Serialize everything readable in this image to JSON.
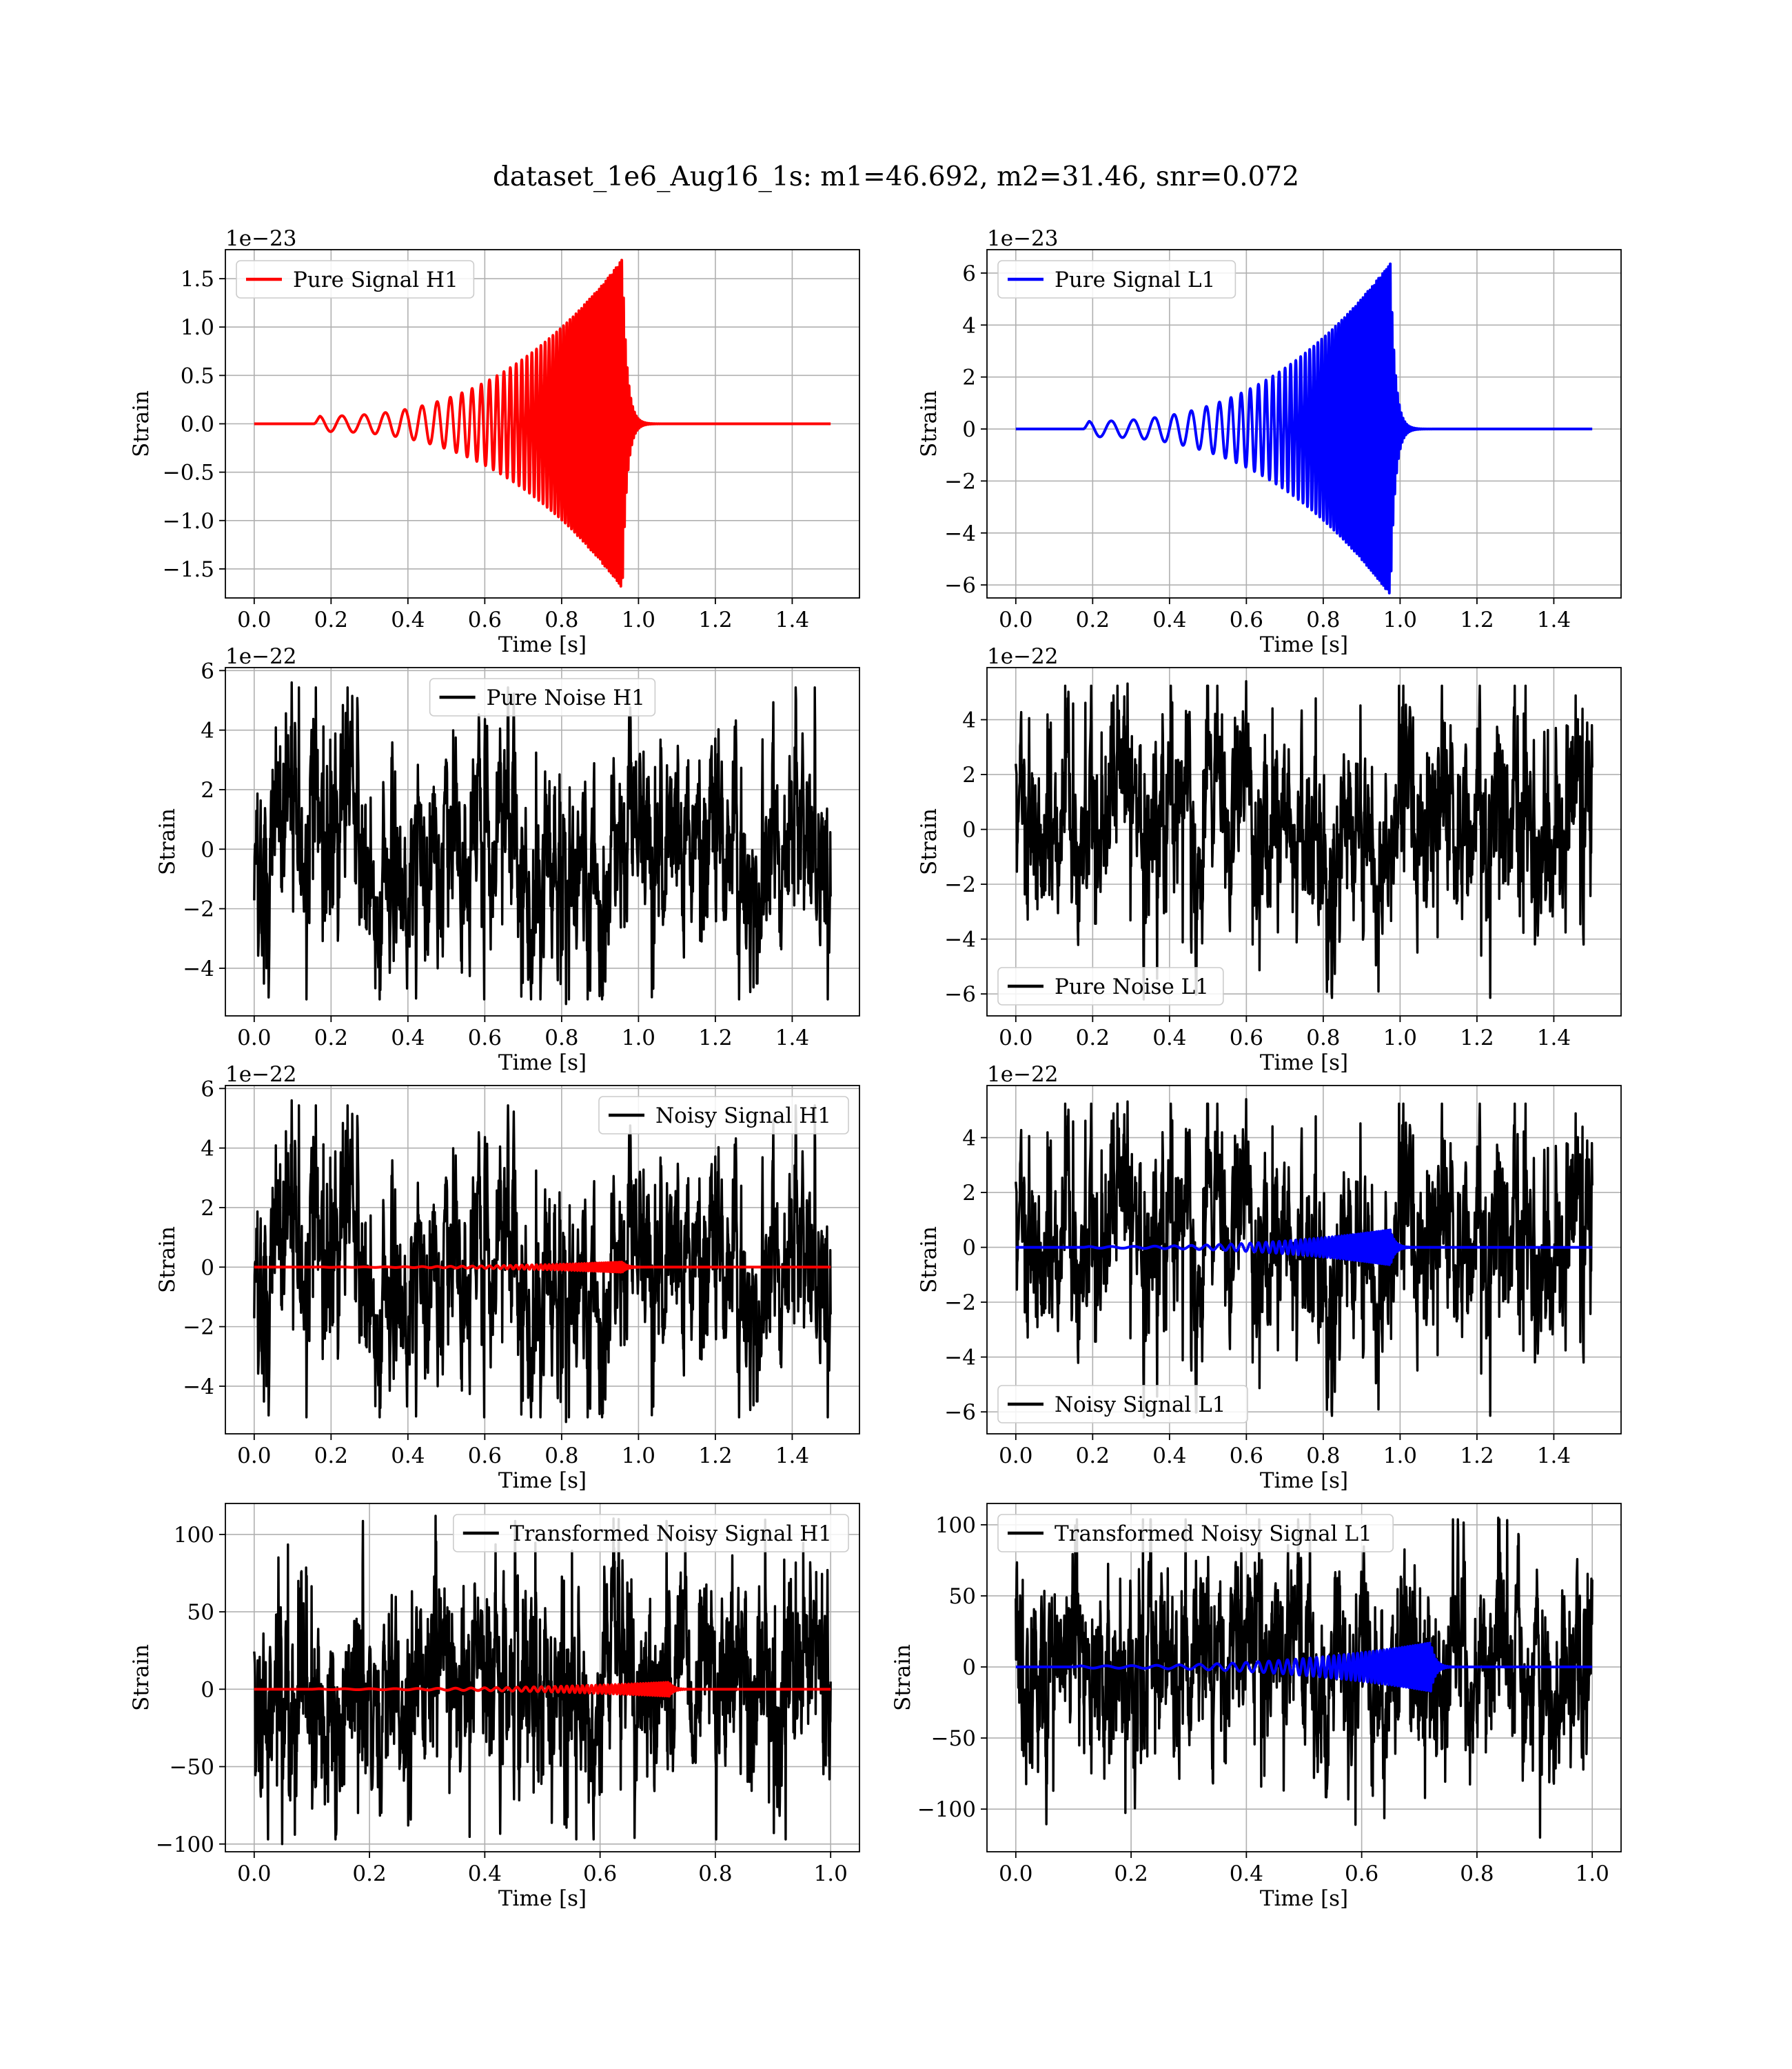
{
  "figure": {
    "suptitle": "dataset_1e6_Aug16_1s: m1=46.692, m2=31.46, snr=0.072"
  },
  "chart_data": [
    {
      "type": "line",
      "panel": "pure-signal-h1",
      "xlabel": "Time [s]",
      "ylabel": "Strain",
      "offset_text": "1e−23",
      "xlim": [
        -0.075,
        1.575
      ],
      "ylim": [
        -1.8,
        1.8
      ],
      "xticks": [
        0.0,
        0.2,
        0.4,
        0.6,
        0.8,
        1.0,
        1.2,
        1.4
      ],
      "xtick_labels": [
        "0.0",
        "0.2",
        "0.4",
        "0.6",
        "0.8",
        "1.0",
        "1.2",
        "1.4"
      ],
      "yticks": [
        -1.5,
        -1.0,
        -0.5,
        0.0,
        0.5,
        1.0,
        1.5
      ],
      "ytick_labels": [
        "−1.5",
        "−1.0",
        "−0.5",
        "0.0",
        "0.5",
        "1.0",
        "1.5"
      ],
      "grid": true,
      "legend": "upper left",
      "series": [
        {
          "name": "Pure Signal H1",
          "color": "#ff0000",
          "kind": "chirp",
          "signal": {
            "t_start": 0.155,
            "t_merge": 0.958,
            "t_end": 1.5,
            "f0": 17,
            "f1": 210,
            "a0": 0.08,
            "a1": 1.7,
            "ringdown": 0.012
          }
        }
      ]
    },
    {
      "type": "line",
      "panel": "pure-signal-l1",
      "xlabel": "Time [s]",
      "ylabel": "Strain",
      "offset_text": "1e−23",
      "xlim": [
        -0.075,
        1.575
      ],
      "ylim": [
        -6.5,
        6.9
      ],
      "xticks": [
        0.0,
        0.2,
        0.4,
        0.6,
        0.8,
        1.0,
        1.2,
        1.4
      ],
      "xtick_labels": [
        "0.0",
        "0.2",
        "0.4",
        "0.6",
        "0.8",
        "1.0",
        "1.2",
        "1.4"
      ],
      "yticks": [
        -6,
        -4,
        -2,
        0,
        2,
        4,
        6
      ],
      "ytick_labels": [
        "−6",
        "−4",
        "−2",
        "0",
        "2",
        "4",
        "6"
      ],
      "grid": true,
      "legend": "upper left",
      "series": [
        {
          "name": "Pure Signal L1",
          "color": "#0000ff",
          "kind": "chirp",
          "signal": {
            "t_start": 0.175,
            "t_merge": 0.975,
            "t_end": 1.5,
            "f0": 17,
            "f1": 210,
            "a0": 0.3,
            "a1": 6.4,
            "ringdown": 0.012
          }
        }
      ]
    },
    {
      "type": "line",
      "panel": "pure-noise-h1",
      "xlabel": "Time [s]",
      "ylabel": "Strain",
      "offset_text": "1e−22",
      "xlim": [
        -0.075,
        1.575
      ],
      "ylim": [
        -5.6,
        6.1
      ],
      "xticks": [
        0.0,
        0.2,
        0.4,
        0.6,
        0.8,
        1.0,
        1.2,
        1.4
      ],
      "xtick_labels": [
        "0.0",
        "0.2",
        "0.4",
        "0.6",
        "0.8",
        "1.0",
        "1.2",
        "1.4"
      ],
      "yticks": [
        -4,
        -2,
        0,
        2,
        4,
        6
      ],
      "ytick_labels": [
        "−4",
        "−2",
        "0",
        "2",
        "4",
        "6"
      ],
      "grid": true,
      "legend": "upper center",
      "series": [
        {
          "name": "Pure Noise H1",
          "color": "#000000",
          "kind": "noise",
          "noise": {
            "t_end": 1.5,
            "sigma": 1.5,
            "max": 5.6,
            "min": -5.2,
            "n": 1600,
            "seed": 11
          }
        }
      ]
    },
    {
      "type": "line",
      "panel": "pure-noise-l1",
      "xlabel": "Time [s]",
      "ylabel": "Strain",
      "offset_text": "1e−22",
      "xlim": [
        -0.075,
        1.575
      ],
      "ylim": [
        -6.8,
        5.9
      ],
      "xticks": [
        0.0,
        0.2,
        0.4,
        0.6,
        0.8,
        1.0,
        1.2,
        1.4
      ],
      "xtick_labels": [
        "0.0",
        "0.2",
        "0.4",
        "0.6",
        "0.8",
        "1.0",
        "1.2",
        "1.4"
      ],
      "yticks": [
        -6,
        -4,
        -2,
        0,
        2,
        4
      ],
      "ytick_labels": [
        "−6",
        "−4",
        "−2",
        "0",
        "2",
        "4"
      ],
      "grid": true,
      "legend": "lower left",
      "series": [
        {
          "name": "Pure Noise L1",
          "color": "#000000",
          "kind": "noise",
          "noise": {
            "t_end": 1.5,
            "sigma": 1.6,
            "max": 5.4,
            "min": -6.2,
            "n": 1600,
            "seed": 23
          }
        }
      ]
    },
    {
      "type": "line",
      "panel": "noisy-signal-h1",
      "xlabel": "Time [s]",
      "ylabel": "Strain",
      "offset_text": "1e−22",
      "xlim": [
        -0.075,
        1.575
      ],
      "ylim": [
        -5.6,
        6.1
      ],
      "xticks": [
        0.0,
        0.2,
        0.4,
        0.6,
        0.8,
        1.0,
        1.2,
        1.4
      ],
      "xtick_labels": [
        "0.0",
        "0.2",
        "0.4",
        "0.6",
        "0.8",
        "1.0",
        "1.2",
        "1.4"
      ],
      "yticks": [
        -4,
        -2,
        0,
        2,
        4,
        6
      ],
      "ytick_labels": [
        "−4",
        "−2",
        "0",
        "2",
        "4",
        "6"
      ],
      "grid": true,
      "legend": "upper right",
      "series": [
        {
          "name": "Noisy Signal H1",
          "color": "#000000",
          "kind": "noise",
          "noise": {
            "t_end": 1.5,
            "sigma": 1.5,
            "max": 5.6,
            "min": -5.2,
            "n": 1600,
            "seed": 11
          }
        },
        {
          "color": "#ff0000",
          "kind": "chirp",
          "signal": {
            "t_start": 0.155,
            "t_merge": 0.958,
            "t_end": 1.5,
            "f0": 17,
            "f1": 210,
            "a0": 0.008,
            "a1": 0.17,
            "ringdown": 0.012
          }
        }
      ]
    },
    {
      "type": "line",
      "panel": "noisy-signal-l1",
      "xlabel": "Time [s]",
      "ylabel": "Strain",
      "offset_text": "1e−22",
      "xlim": [
        -0.075,
        1.575
      ],
      "ylim": [
        -6.8,
        5.9
      ],
      "xticks": [
        0.0,
        0.2,
        0.4,
        0.6,
        0.8,
        1.0,
        1.2,
        1.4
      ],
      "xtick_labels": [
        "0.0",
        "0.2",
        "0.4",
        "0.6",
        "0.8",
        "1.0",
        "1.2",
        "1.4"
      ],
      "yticks": [
        -6,
        -4,
        -2,
        0,
        2,
        4
      ],
      "ytick_labels": [
        "−6",
        "−4",
        "−2",
        "0",
        "2",
        "4"
      ],
      "grid": true,
      "legend": "lower left",
      "series": [
        {
          "name": "Noisy Signal L1",
          "color": "#000000",
          "kind": "noise",
          "noise": {
            "t_end": 1.5,
            "sigma": 1.6,
            "max": 5.4,
            "min": -6.2,
            "n": 1600,
            "seed": 23
          }
        },
        {
          "color": "#0000ff",
          "kind": "chirp",
          "signal": {
            "t_start": 0.175,
            "t_merge": 0.975,
            "t_end": 1.5,
            "f0": 17,
            "f1": 210,
            "a0": 0.03,
            "a1": 0.64,
            "ringdown": 0.012
          }
        }
      ]
    },
    {
      "type": "line",
      "panel": "transformed-noisy-signal-h1",
      "xlabel": "Time [s]",
      "ylabel": "Strain",
      "offset_text": "",
      "xlim": [
        -0.05,
        1.05
      ],
      "ylim": [
        -105,
        120
      ],
      "xticks": [
        0.0,
        0.2,
        0.4,
        0.6,
        0.8,
        1.0
      ],
      "xtick_labels": [
        "0.0",
        "0.2",
        "0.4",
        "0.6",
        "0.8",
        "1.0"
      ],
      "yticks": [
        -100,
        -50,
        0,
        50,
        100
      ],
      "ytick_labels": [
        "−100",
        "−50",
        "0",
        "50",
        "100"
      ],
      "grid": true,
      "legend": "upper right",
      "series": [
        {
          "name": "Transformed Noisy Signal H1",
          "color": "#000000",
          "kind": "noise",
          "noise": {
            "t_end": 1.0,
            "sigma": 28,
            "max": 112,
            "min": -100,
            "n": 2000,
            "seed": 37
          }
        },
        {
          "color": "#ff0000",
          "kind": "chirp",
          "signal": {
            "t_start": 0.1,
            "t_merge": 0.72,
            "t_end": 1.0,
            "f0": 22,
            "f1": 260,
            "a0": 0.3,
            "a1": 4.5,
            "ringdown": 0.008
          }
        }
      ]
    },
    {
      "type": "line",
      "panel": "transformed-noisy-signal-l1",
      "xlabel": "Time [s]",
      "ylabel": "Strain",
      "offset_text": "",
      "xlim": [
        -0.05,
        1.05
      ],
      "ylim": [
        -130,
        115
      ],
      "xticks": [
        0.0,
        0.2,
        0.4,
        0.6,
        0.8,
        1.0
      ],
      "xtick_labels": [
        "0.0",
        "0.2",
        "0.4",
        "0.6",
        "0.8",
        "1.0"
      ],
      "yticks": [
        -100,
        -50,
        0,
        50,
        100
      ],
      "ytick_labels": [
        "−100",
        "−50",
        "0",
        "50",
        "100"
      ],
      "grid": true,
      "legend": "upper left",
      "series": [
        {
          "name": "Transformed Noisy Signal L1",
          "color": "#000000",
          "kind": "noise",
          "noise": {
            "t_end": 1.0,
            "sigma": 28,
            "max": 107,
            "min": -120,
            "n": 2000,
            "seed": 51
          }
        },
        {
          "color": "#0000ff",
          "kind": "chirp",
          "signal": {
            "t_start": 0.1,
            "t_merge": 0.72,
            "t_end": 1.0,
            "f0": 22,
            "f1": 260,
            "a0": 0.8,
            "a1": 17,
            "ringdown": 0.008
          }
        }
      ]
    }
  ]
}
